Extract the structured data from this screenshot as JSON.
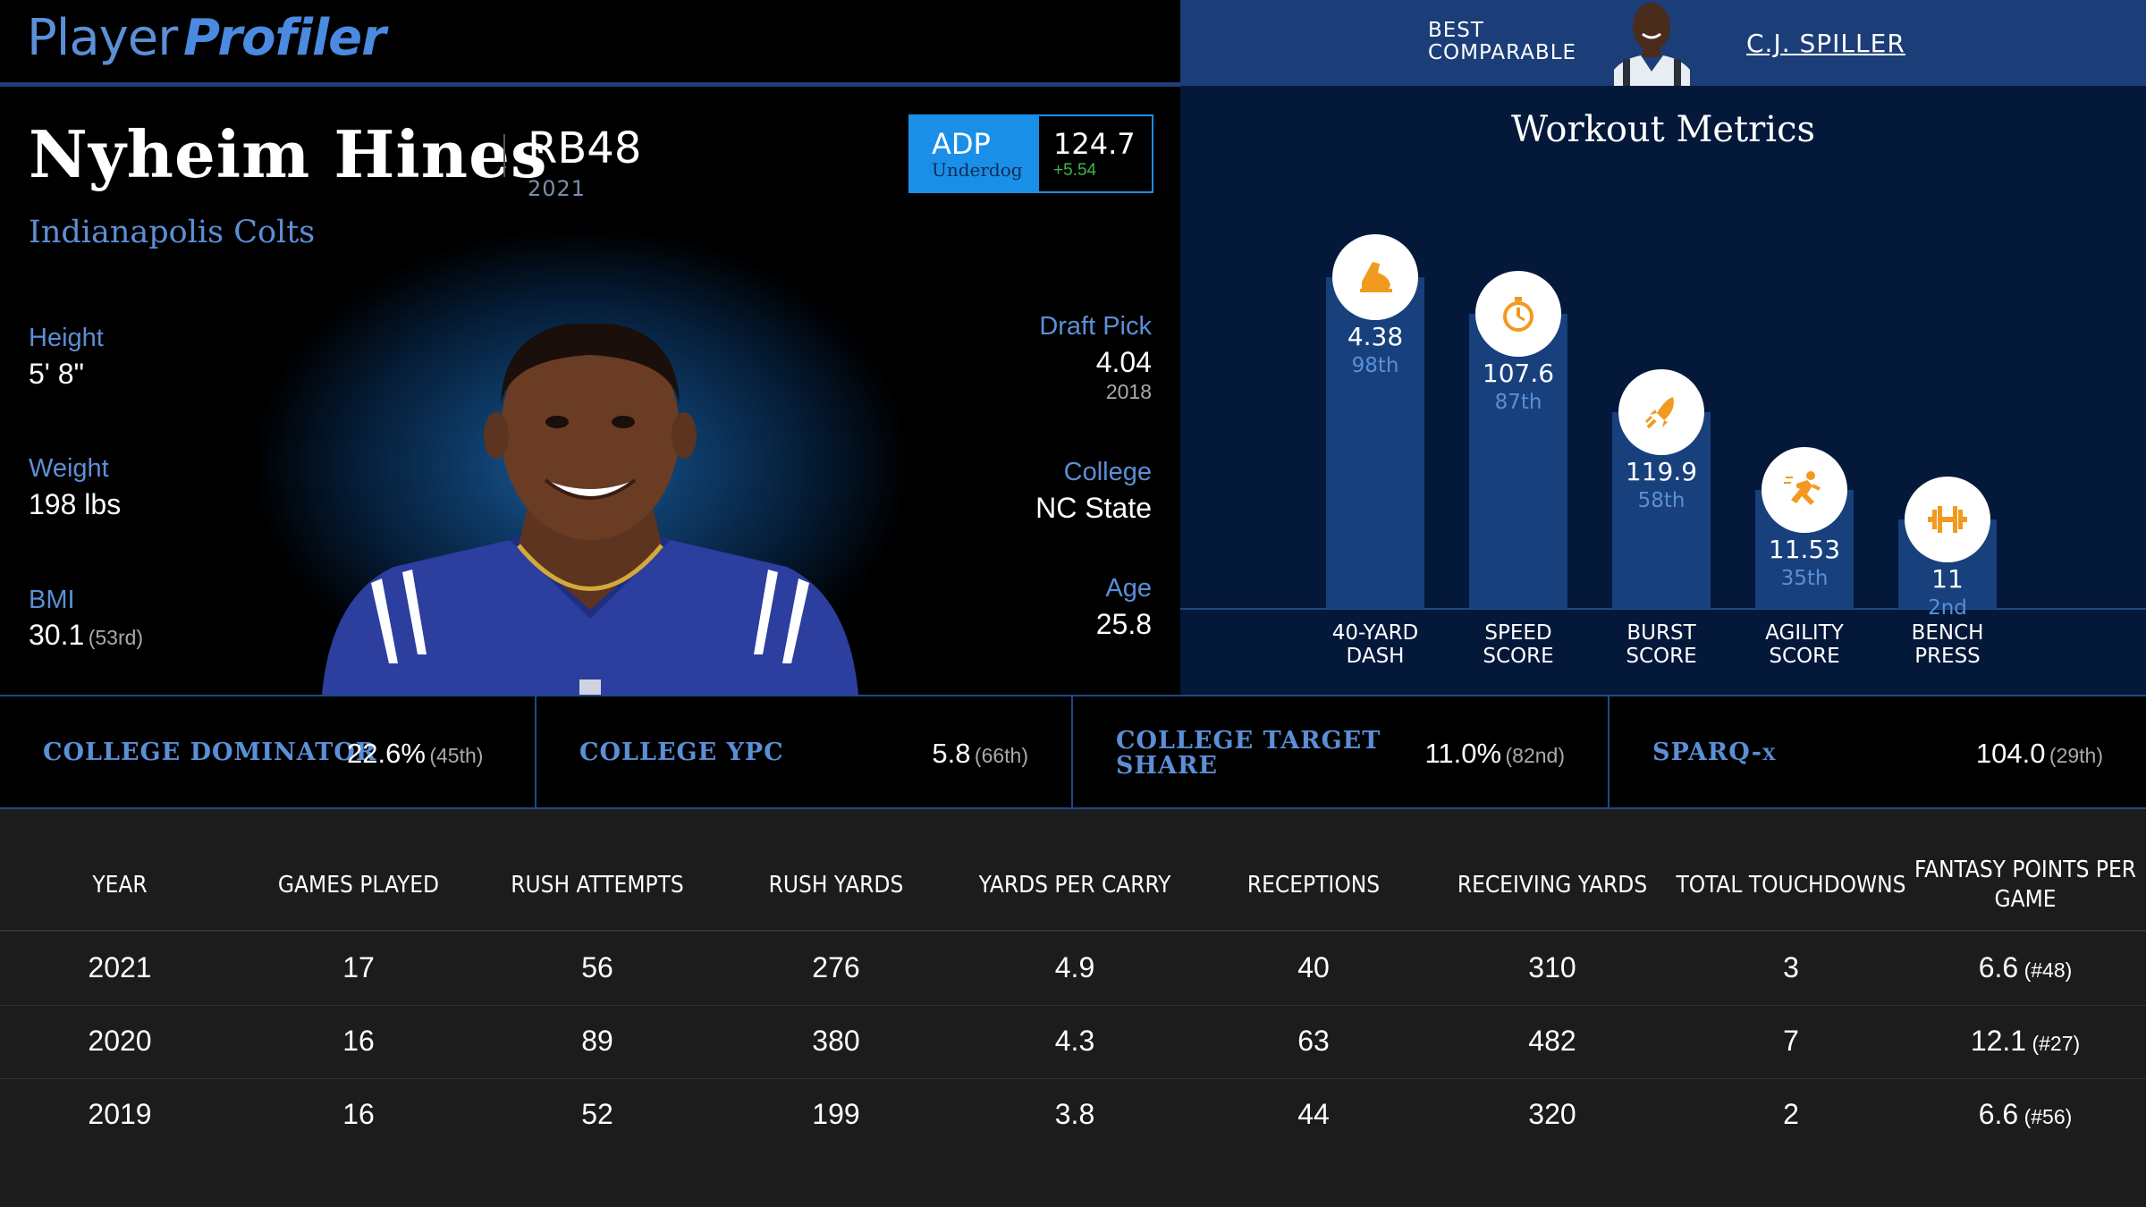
{
  "brand": {
    "part1": "Player",
    "part2": "Profiler"
  },
  "best_comparable": {
    "label_line1": "BEST",
    "label_line2": "COMPARABLE",
    "name": "C.J. SPILLER"
  },
  "player": {
    "name": "Nyheim Hines",
    "position_rank": "RB48",
    "season": "2021",
    "team": "Indianapolis Colts"
  },
  "adp": {
    "title": "ADP",
    "source": "Underdog",
    "value": "124.7",
    "change": "+5.54"
  },
  "bio": {
    "height": {
      "label": "Height",
      "value": "5' 8\""
    },
    "weight": {
      "label": "Weight",
      "value": "198 lbs"
    },
    "bmi": {
      "label": "BMI",
      "value": "30.1",
      "rank": "(53rd)"
    },
    "draft_pick": {
      "label": "Draft Pick",
      "value": "4.04",
      "year": "2018"
    },
    "college": {
      "label": "College",
      "value": "NC State"
    },
    "age": {
      "label": "Age",
      "value": "25.8"
    }
  },
  "workout": {
    "title": "Workout Metrics",
    "metrics": [
      {
        "label1": "40-YARD",
        "label2": "DASH",
        "value": "4.38",
        "percentile": "98th",
        "pct": 98,
        "icon": "shoe-icon"
      },
      {
        "label1": "SPEED",
        "label2": "SCORE",
        "value": "107.6",
        "percentile": "87th",
        "pct": 87,
        "icon": "stopwatch-icon"
      },
      {
        "label1": "BURST",
        "label2": "SCORE",
        "value": "119.9",
        "percentile": "58th",
        "pct": 58,
        "icon": "rocket-icon"
      },
      {
        "label1": "AGILITY",
        "label2": "SCORE",
        "value": "11.53",
        "percentile": "35th",
        "pct": 35,
        "icon": "runner-icon"
      },
      {
        "label1": "BENCH",
        "label2": "PRESS",
        "value": "11",
        "percentile": "2nd",
        "pct": 2,
        "icon": "dumbbell-icon"
      }
    ]
  },
  "college_metrics": [
    {
      "label": "COLLEGE DOMINATOR",
      "value": "22.6%",
      "rank": "(45th)"
    },
    {
      "label": "COLLEGE YPC",
      "value": "5.8",
      "rank": "(66th)"
    },
    {
      "label_line1": "COLLEGE TARGET",
      "label_line2": "SHARE",
      "value": "11.0%",
      "rank": "(82nd)"
    },
    {
      "label": "SPARQ-x",
      "value": "104.0",
      "rank": "(29th)"
    }
  ],
  "stats_table": {
    "headers": [
      "YEAR",
      "GAMES PLAYED",
      "RUSH ATTEMPTS",
      "RUSH YARDS",
      "YARDS PER CARRY",
      "RECEPTIONS",
      "RECEIVING YARDS",
      "TOTAL TOUCHDOWNS",
      "FANTASY POINTS PER",
      "GAME"
    ],
    "rows": [
      [
        "2021",
        "17",
        "56",
        "276",
        "4.9",
        "40",
        "310",
        "3",
        "6.6",
        "(#48)"
      ],
      [
        "2020",
        "16",
        "89",
        "380",
        "4.3",
        "63",
        "482",
        "7",
        "12.1",
        "(#27)"
      ],
      [
        "2019",
        "16",
        "52",
        "199",
        "3.8",
        "44",
        "320",
        "2",
        "6.6",
        "(#56)"
      ]
    ]
  },
  "colors": {
    "accent": "#5b8fd6",
    "adp_blue": "#1a8fe8",
    "bar": "#17407c",
    "icon_orange": "#f29a1f",
    "positive": "#3cb84a"
  }
}
